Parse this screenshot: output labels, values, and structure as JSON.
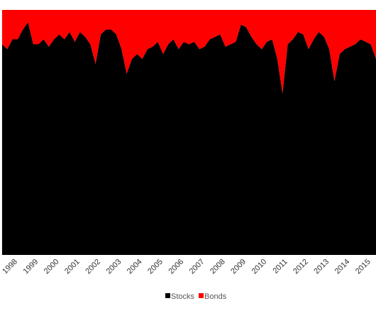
{
  "chart_data": {
    "type": "stacked_area",
    "x": [
      1997.25,
      1997.5,
      1997.75,
      1998,
      1998.25,
      1998.5,
      1998.75,
      1999,
      1999.25,
      1999.5,
      1999.75,
      2000,
      2000.25,
      2000.5,
      2000.75,
      2001,
      2001.25,
      2001.5,
      2001.75,
      2002,
      2002.25,
      2002.5,
      2002.75,
      2003,
      2003.25,
      2003.5,
      2003.75,
      2004,
      2004.25,
      2004.5,
      2004.75,
      2005,
      2005.25,
      2005.5,
      2005.75,
      2006,
      2006.25,
      2006.5,
      2006.75,
      2007,
      2007.25,
      2007.5,
      2007.75,
      2008,
      2008.25,
      2008.5,
      2008.75,
      2009,
      2009.25,
      2009.5,
      2009.75,
      2010,
      2010.25,
      2010.5,
      2010.75,
      2011,
      2011.25,
      2011.5,
      2011.75,
      2012,
      2012.25,
      2012.5,
      2012.75,
      2013,
      2013.25,
      2013.5,
      2013.75,
      2014,
      2014.25,
      2014.5,
      2014.75,
      2015,
      2015.25
    ],
    "series": [
      {
        "name": "Stocks",
        "color": "#000000",
        "values": [
          86,
          84,
          88,
          88,
          92,
          95,
          86,
          86,
          88,
          85,
          88,
          90,
          88,
          91,
          87,
          91,
          89,
          86,
          78,
          90,
          92,
          92,
          90,
          84,
          74,
          80,
          82,
          80,
          84,
          85,
          87,
          82,
          86,
          88,
          84,
          87,
          86,
          87,
          84,
          85,
          88,
          89,
          90,
          85,
          86,
          87,
          94,
          93,
          89,
          86,
          84,
          87,
          88,
          80,
          66,
          86,
          88,
          91,
          90,
          84,
          88,
          91,
          89,
          84,
          71,
          82,
          84,
          85,
          86,
          88,
          87,
          86,
          80
        ]
      },
      {
        "name": "Bonds",
        "color": "#ff0000",
        "values": [
          14,
          16,
          12,
          12,
          8,
          5,
          14,
          14,
          12,
          15,
          12,
          10,
          12,
          9,
          13,
          9,
          11,
          14,
          22,
          10,
          8,
          8,
          10,
          16,
          26,
          20,
          18,
          20,
          16,
          15,
          13,
          18,
          14,
          12,
          16,
          13,
          14,
          13,
          16,
          15,
          12,
          11,
          10,
          15,
          14,
          13,
          6,
          7,
          11,
          14,
          16,
          13,
          12,
          20,
          34,
          14,
          12,
          9,
          10,
          16,
          12,
          9,
          11,
          16,
          29,
          18,
          16,
          15,
          14,
          12,
          13,
          14,
          20
        ]
      }
    ],
    "xlim": [
      1997.15,
      2015.25
    ],
    "xticks": [
      1998,
      1999,
      2000,
      2001,
      2002,
      2003,
      2004,
      2005,
      2006,
      2007,
      2008,
      2009,
      2010,
      2011,
      2012,
      2013,
      2014,
      2015
    ],
    "ylim": [
      0,
      100
    ],
    "legend": "bottom"
  }
}
